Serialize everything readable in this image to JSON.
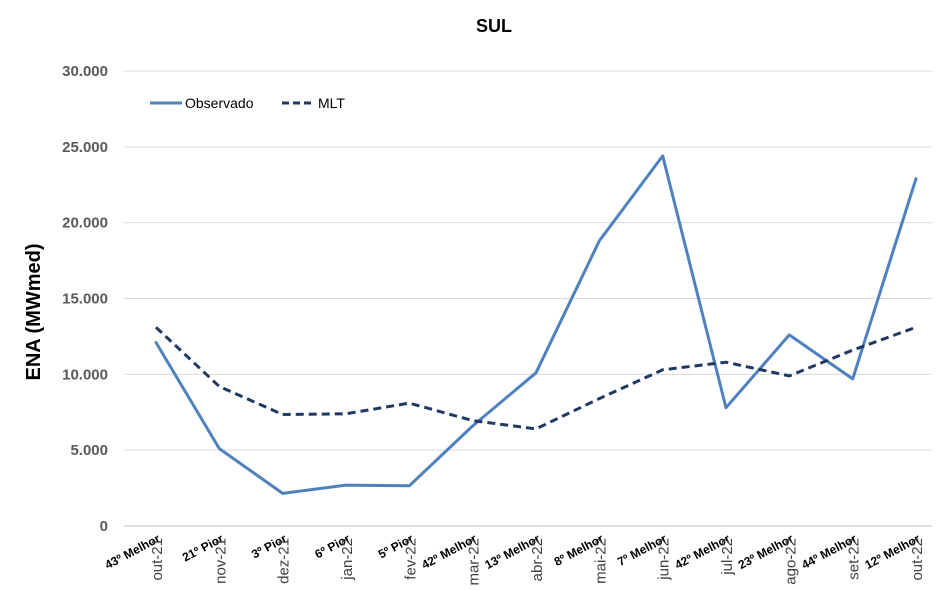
{
  "chart_data": {
    "type": "line",
    "title": "SUL",
    "ylabel": "ENA (MWmed)",
    "xlabel": "",
    "ylim": [
      0,
      30000
    ],
    "yticks": [
      0,
      5000,
      10000,
      15000,
      20000,
      25000,
      30000
    ],
    "ytick_labels": [
      "0",
      "5.000",
      "10.000",
      "15.000",
      "20.000",
      "25.000",
      "30.000"
    ],
    "categories": [
      "out-21",
      "nov-21",
      "dez-21",
      "jan-22",
      "fev-22",
      "mar-22",
      "abr-22",
      "mai-22",
      "jun-22",
      "jul-22",
      "ago-22",
      "set-22",
      "out-22"
    ],
    "annotations": [
      "43º Melhor",
      "21º Pior",
      "3º Pior",
      "6º Pior",
      "5º Pior",
      "42º Melhor",
      "13º Melhor",
      "8º Melhor",
      "7º Melhor",
      "42º Melhor",
      "23º Melhor",
      "44º Melhor",
      "12º Melhor"
    ],
    "series": [
      {
        "name": "Observado",
        "color": "#4f81bd",
        "style": "solid",
        "values": [
          12100,
          5100,
          2150,
          2700,
          2650,
          6600,
          10100,
          18800,
          24400,
          7800,
          12600,
          9700,
          22900
        ]
      },
      {
        "name": "MLT",
        "color": "#1f3864",
        "style": "dashed",
        "values": [
          13100,
          9200,
          7350,
          7400,
          8100,
          6950,
          6400,
          8400,
          10300,
          10800,
          9900,
          11600,
          13100
        ]
      }
    ],
    "legend_position": "top-left",
    "grid": true
  }
}
